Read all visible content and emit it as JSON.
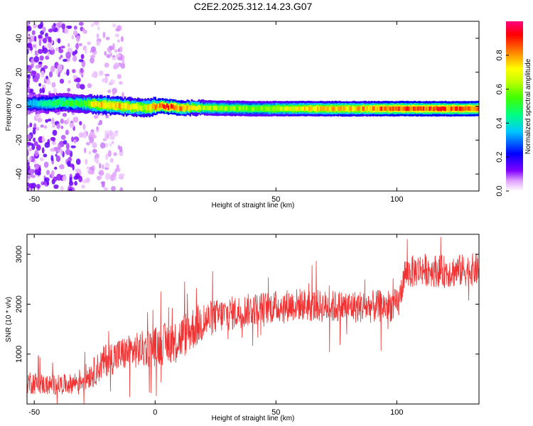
{
  "title": "C2E2.2025.312.14.23.G07",
  "chart_data": [
    {
      "type": "heatmap",
      "xlabel": "Height of straight line (km)",
      "ylabel": "Frequency (Hz)",
      "xlim": [
        -53,
        134
      ],
      "ylim": [
        -50,
        50
      ],
      "xticks": [
        -50,
        0,
        50,
        100
      ],
      "yticks": [
        -40,
        -20,
        0,
        20,
        40
      ],
      "grid": false,
      "colorbar": {
        "label": "Normalized spectral amplitude",
        "range": [
          0.0,
          1.0
        ],
        "ticks": [
          "0.0",
          "0.2",
          "0.4",
          "0.6",
          "0.8"
        ],
        "colormap": [
          "#ffffff",
          "#e0a0ff",
          "#8000ff",
          "#0000ff",
          "#00c8ff",
          "#00ff80",
          "#40ff00",
          "#c8ff00",
          "#ffff00",
          "#ff8000",
          "#ff0000",
          "#ff0080"
        ]
      },
      "ridge": [
        {
          "x": -53,
          "y": 1.5,
          "amp": 0.35
        },
        {
          "x": -45,
          "y": 1.5,
          "amp": 0.45
        },
        {
          "x": -40,
          "y": 2.0,
          "amp": 0.5
        },
        {
          "x": -30,
          "y": 1.5,
          "amp": 0.55
        },
        {
          "x": -25,
          "y": 1.0,
          "amp": 0.75
        },
        {
          "x": -15,
          "y": 0.0,
          "amp": 0.8
        },
        {
          "x": -5,
          "y": -1.0,
          "amp": 0.7
        },
        {
          "x": 3,
          "y": 0.0,
          "amp": 0.95
        },
        {
          "x": 10,
          "y": -1.0,
          "amp": 0.85
        },
        {
          "x": 20,
          "y": -1.0,
          "amp": 0.65
        },
        {
          "x": 40,
          "y": -1.5,
          "amp": 0.6
        },
        {
          "x": 60,
          "y": -1.5,
          "amp": 0.75
        },
        {
          "x": 80,
          "y": -1.5,
          "amp": 0.8
        },
        {
          "x": 100,
          "y": -1.5,
          "amp": 0.9
        },
        {
          "x": 120,
          "y": -1.5,
          "amp": 0.9
        },
        {
          "x": 134,
          "y": -1.5,
          "amp": 0.9
        }
      ]
    },
    {
      "type": "line",
      "xlabel": "Height of straight line (km)",
      "ylabel": "SNR (10 * v/v)",
      "xlim": [
        -53,
        134
      ],
      "ylim": [
        0,
        3400
      ],
      "xticks": [
        -50,
        0,
        50,
        100
      ],
      "yticks": [
        1000,
        2000,
        3000
      ],
      "grid": false,
      "series": [
        {
          "color": "#f03232",
          "trend_x": [
            -53,
            -45,
            -35,
            -30,
            -25,
            -20,
            -10,
            0,
            10,
            15,
            20,
            25,
            30,
            40,
            50,
            60,
            70,
            80,
            90,
            100,
            101,
            103,
            110,
            120,
            134
          ],
          "trend_y": [
            450,
            380,
            400,
            500,
            650,
            900,
            1050,
            1150,
            1300,
            1500,
            1650,
            1750,
            1800,
            1900,
            1950,
            2000,
            1950,
            1950,
            1950,
            1980,
            2050,
            2600,
            2700,
            2650,
            2700
          ],
          "noise_amp": [
            250,
            200,
            200,
            250,
            300,
            350,
            350,
            400,
            450,
            450,
            400,
            350,
            350,
            330,
            330,
            330,
            330,
            330,
            330,
            330,
            330,
            330,
            330,
            330,
            330
          ]
        }
      ]
    }
  ]
}
